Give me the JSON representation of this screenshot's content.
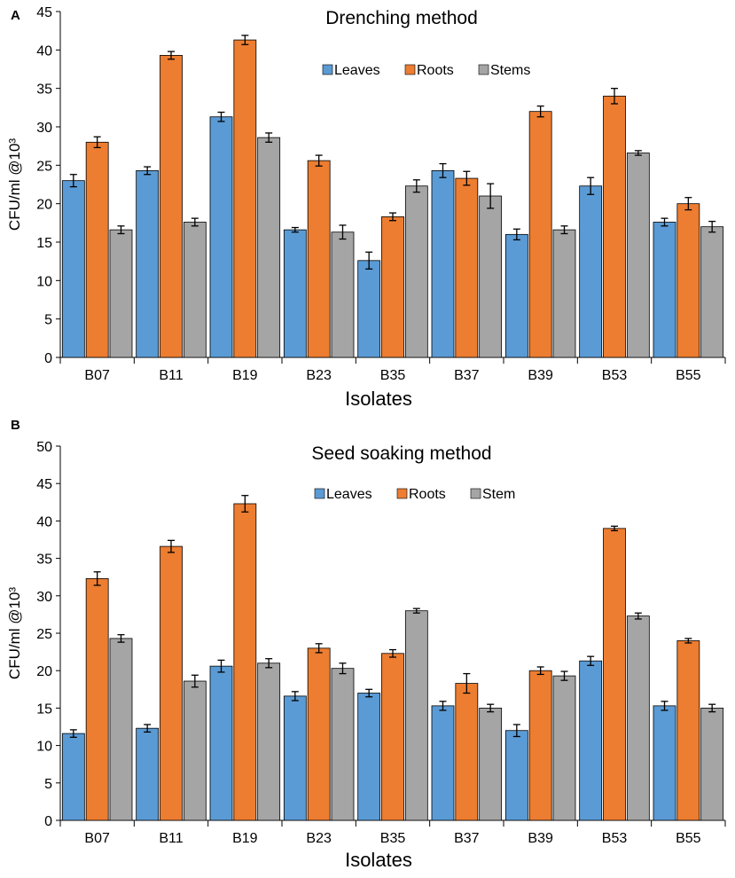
{
  "colors": {
    "Leaves": "#5b9bd5",
    "Roots": "#ed7d31",
    "Stems": "#a5a5a5",
    "Stem": "#a5a5a5",
    "axis": "#000000"
  },
  "chart_data": [
    {
      "type": "bar",
      "panel_label": "A",
      "title": "Drenching method",
      "xlabel": "Isolates",
      "ylabel": "CFU/ml @10³",
      "ylim": [
        0,
        45
      ],
      "ytick_step": 5,
      "yticks": [
        "0",
        "5",
        "10",
        "15",
        "20",
        "25",
        "30",
        "35",
        "40",
        "45"
      ],
      "grid": false,
      "legend_position": "top-center",
      "categories": [
        "B07",
        "B11",
        "B19",
        "B23",
        "B35",
        "B37",
        "B39",
        "B53",
        "B55"
      ],
      "series": [
        {
          "name": "Leaves",
          "values": [
            23.0,
            24.3,
            31.3,
            16.6,
            12.6,
            24.3,
            16.0,
            22.3,
            17.6
          ],
          "errors": [
            0.8,
            0.5,
            0.6,
            0.3,
            1.1,
            0.9,
            0.7,
            1.1,
            0.5
          ]
        },
        {
          "name": "Roots",
          "values": [
            28.0,
            39.3,
            41.3,
            25.6,
            18.3,
            23.3,
            32.0,
            34.0,
            20.0
          ],
          "errors": [
            0.7,
            0.5,
            0.6,
            0.7,
            0.5,
            0.9,
            0.7,
            1.0,
            0.8
          ]
        },
        {
          "name": "Stems",
          "values": [
            16.6,
            17.6,
            28.6,
            16.3,
            22.3,
            21.0,
            16.6,
            26.6,
            17.0
          ],
          "errors": [
            0.5,
            0.5,
            0.6,
            0.9,
            0.8,
            1.6,
            0.5,
            0.3,
            0.7
          ]
        }
      ]
    },
    {
      "type": "bar",
      "panel_label": "B",
      "title": "Seed soaking method",
      "xlabel": "Isolates",
      "ylabel": "CFU/ml @10³",
      "ylim": [
        0,
        50
      ],
      "ytick_step": 5,
      "yticks": [
        "0",
        "5",
        "10",
        "15",
        "20",
        "25",
        "30",
        "35",
        "40",
        "45",
        "50"
      ],
      "grid": false,
      "legend_position": "top-center",
      "categories": [
        "B07",
        "B11",
        "B19",
        "B23",
        "B35",
        "B37",
        "B39",
        "B53",
        "B55"
      ],
      "series": [
        {
          "name": "Leaves",
          "values": [
            11.6,
            12.3,
            20.6,
            16.6,
            17.0,
            15.3,
            12.0,
            21.3,
            15.3
          ],
          "errors": [
            0.5,
            0.5,
            0.8,
            0.6,
            0.5,
            0.6,
            0.8,
            0.6,
            0.6
          ]
        },
        {
          "name": "Roots",
          "values": [
            32.3,
            36.6,
            42.3,
            23.0,
            22.3,
            18.3,
            20.0,
            39.0,
            24.0
          ],
          "errors": [
            0.9,
            0.8,
            1.1,
            0.6,
            0.5,
            1.3,
            0.5,
            0.3,
            0.3
          ]
        },
        {
          "name": "Stem",
          "values": [
            24.3,
            18.6,
            21.0,
            20.3,
            28.0,
            15.0,
            19.3,
            27.3,
            15.0
          ],
          "errors": [
            0.5,
            0.8,
            0.6,
            0.7,
            0.3,
            0.5,
            0.6,
            0.4,
            0.5
          ]
        }
      ]
    }
  ]
}
